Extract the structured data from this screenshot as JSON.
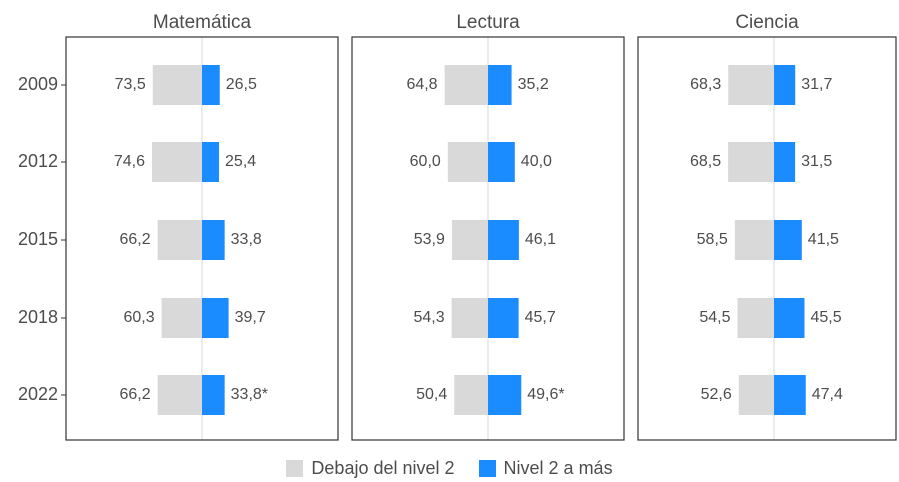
{
  "chart_data": {
    "type": "bar",
    "orientation": "horizontal-diverging",
    "categories": [
      "2009",
      "2012",
      "2015",
      "2018",
      "2022"
    ],
    "panels": [
      {
        "title": "Matemática",
        "series": [
          {
            "name": "Debajo del nivel 2",
            "values": [
              73.5,
              74.6,
              66.2,
              60.3,
              66.2
            ],
            "labels": [
              "73,5",
              "74,6",
              "66,2",
              "60,3",
              "66,2"
            ]
          },
          {
            "name": "Nivel 2 a más",
            "values": [
              26.5,
              25.4,
              33.8,
              39.7,
              33.8
            ],
            "labels": [
              "26,5",
              "25,4",
              "33,8",
              "39,7",
              "33,8*"
            ]
          }
        ]
      },
      {
        "title": "Lectura",
        "series": [
          {
            "name": "Debajo del nivel 2",
            "values": [
              64.8,
              60.0,
              53.9,
              54.3,
              50.4
            ],
            "labels": [
              "64,8",
              "60,0",
              "53,9",
              "54,3",
              "50,4"
            ]
          },
          {
            "name": "Nivel 2 a más",
            "values": [
              35.2,
              40.0,
              46.1,
              45.7,
              49.6
            ],
            "labels": [
              "35,2",
              "40,0",
              "46,1",
              "45,7",
              "49,6*"
            ]
          }
        ]
      },
      {
        "title": "Ciencia",
        "series": [
          {
            "name": "Debajo del nivel 2",
            "values": [
              68.3,
              68.5,
              58.5,
              54.5,
              52.6
            ],
            "labels": [
              "68,3",
              "68,5",
              "58,5",
              "54,5",
              "52,6"
            ]
          },
          {
            "name": "Nivel 2 a más",
            "values": [
              31.7,
              31.5,
              41.5,
              45.5,
              47.4
            ],
            "labels": [
              "31,7",
              "31,5",
              "41,5",
              "45,5",
              "47,4"
            ]
          }
        ]
      }
    ],
    "legend": {
      "position": "bottom",
      "items": [
        {
          "label": "Debajo del nivel 2",
          "color": "#d9d9d9"
        },
        {
          "label": "Nivel 2 a más",
          "color": "#1a8cff"
        }
      ]
    },
    "colors": {
      "below": "#d9d9d9",
      "above": "#1a8cff",
      "center_line": "#d9d9d9"
    },
    "grid": false
  }
}
